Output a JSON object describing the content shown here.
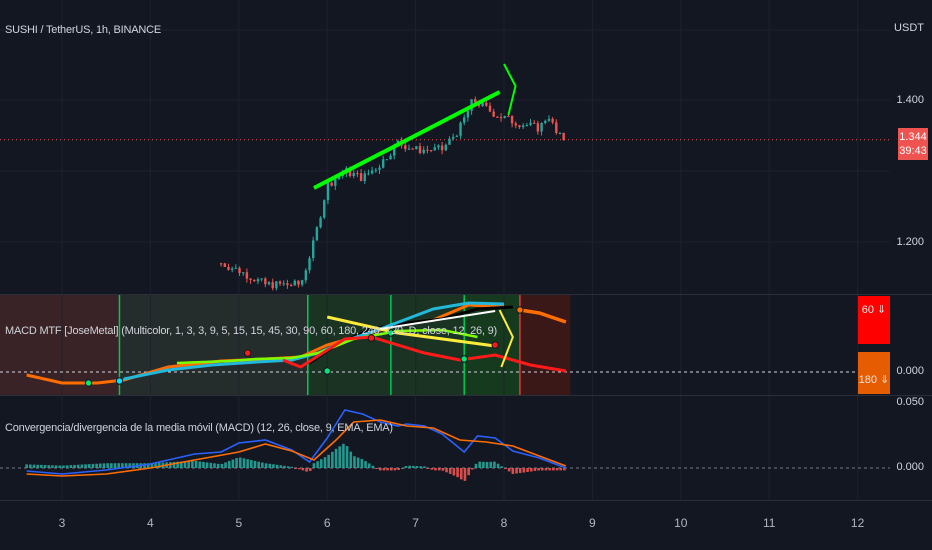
{
  "main": {
    "title": "SUSHI / TetherUS, 1h, BINANCE",
    "y_unit": "USDT",
    "y_ticks": [
      "1.400",
      "1.200"
    ],
    "last_price": "1.344",
    "countdown": "39:43"
  },
  "mtf": {
    "title": "MACD MTF [JoseMetal] (Multicolor, 1, 3, 3, 9, 5, 15, 15, 45, 30, 90, 60, 180, 240, 720, D, close, 12, 26, 9)",
    "zero_label": "0.000",
    "badge_60": "60 ⇓",
    "badge_180": "180 ⇓"
  },
  "macd": {
    "title": "Convergencia/divergencia de la media móvil (MACD) (12, 26, close, 9, EMA, EMA)",
    "top_label": "0.050",
    "zero_label": "0.000"
  },
  "x_ticks": [
    "3",
    "4",
    "5",
    "6",
    "7",
    "8",
    "9",
    "10",
    "11",
    "12"
  ],
  "colors": {
    "bg": "#131722",
    "up": "#26a69a",
    "down": "#ef5350",
    "arrow": "#00ff00",
    "mtf_cyan": "#22b8dc",
    "mtf_orange": "#ff6d00",
    "macd_line": "#2962ff",
    "signal_line": "#ff6d00"
  },
  "chart_data": {
    "type": "candlestick",
    "title": "SUSHI / TetherUS, 1h, BINANCE",
    "y_unit": "USDT",
    "x_ticks": [
      "3",
      "4",
      "5",
      "6",
      "7",
      "8",
      "9",
      "10",
      "11",
      "12"
    ],
    "y_ticks": [
      1.2,
      1.4
    ],
    "last_price": 1.344,
    "price_path": [
      [
        4.8,
        1.17
      ],
      [
        5.0,
        1.16
      ],
      [
        5.3,
        1.14
      ],
      [
        5.7,
        1.14
      ],
      [
        5.85,
        1.2
      ],
      [
        6.0,
        1.28
      ],
      [
        6.2,
        1.3
      ],
      [
        6.4,
        1.29
      ],
      [
        6.6,
        1.31
      ],
      [
        6.8,
        1.34
      ],
      [
        7.0,
        1.33
      ],
      [
        7.3,
        1.33
      ],
      [
        7.5,
        1.36
      ],
      [
        7.65,
        1.4
      ],
      [
        7.9,
        1.38
      ],
      [
        8.1,
        1.37
      ],
      [
        8.4,
        1.36
      ],
      [
        8.5,
        1.38
      ],
      [
        8.6,
        1.35
      ],
      [
        8.7,
        1.344
      ]
    ],
    "annotations": [
      "green trend arrow from ~6.0 to ~8.1",
      "yellow divergence line on MTF pane",
      "white line on MTF pane"
    ]
  }
}
